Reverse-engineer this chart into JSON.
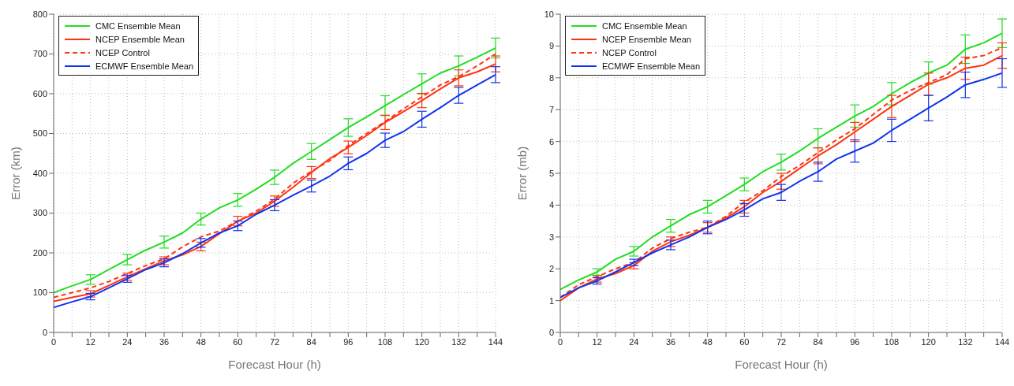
{
  "chart_data": [
    {
      "type": "line",
      "xlabel": "Forecast Hour (h)",
      "ylabel": "Error (km)",
      "x": [
        0,
        6,
        12,
        18,
        24,
        30,
        36,
        42,
        48,
        54,
        60,
        66,
        72,
        78,
        84,
        90,
        96,
        102,
        108,
        114,
        120,
        126,
        132,
        138,
        144
      ],
      "xlim": [
        0,
        144
      ],
      "xticks": [
        0,
        12,
        24,
        36,
        48,
        60,
        72,
        84,
        96,
        108,
        120,
        132,
        144
      ],
      "ylim": [
        0,
        800
      ],
      "yticks": [
        0,
        100,
        200,
        300,
        400,
        500,
        600,
        700,
        800
      ],
      "grid": true,
      "legend": "top left",
      "marker": "none",
      "line_style": "solid",
      "series": [
        {
          "name": "CMC Ensemble Mean",
          "color": "#22dd22",
          "values": [
            100,
            117,
            133,
            158,
            183,
            207,
            227,
            250,
            285,
            313,
            333,
            360,
            390,
            425,
            455,
            485,
            515,
            542,
            570,
            598,
            625,
            652,
            670,
            692,
            715
          ],
          "errors": [
            null,
            null,
            12,
            null,
            13,
            null,
            15,
            null,
            15,
            null,
            16,
            null,
            18,
            null,
            20,
            null,
            22,
            null,
            25,
            null,
            25,
            null,
            25,
            null,
            25
          ]
        },
        {
          "name": "NCEP Ensemble Mean",
          "color": "#ff3311",
          "values": [
            78,
            88,
            97,
            118,
            140,
            160,
            180,
            195,
            216,
            248,
            280,
            300,
            330,
            365,
            402,
            437,
            465,
            495,
            528,
            555,
            583,
            612,
            640,
            655,
            675
          ],
          "errors": [
            null,
            null,
            8,
            null,
            9,
            null,
            10,
            null,
            11,
            null,
            12,
            null,
            13,
            null,
            15,
            null,
            16,
            null,
            18,
            null,
            18,
            null,
            20,
            null,
            20
          ]
        },
        {
          "name": "NCEP Control",
          "color": "#ff3311",
          "line_style": "dashed",
          "values": [
            88,
            100,
            112,
            128,
            148,
            168,
            185,
            215,
            240,
            255,
            280,
            305,
            335,
            375,
            405,
            432,
            470,
            500,
            530,
            562,
            592,
            622,
            643,
            670,
            700
          ]
        },
        {
          "name": "ECMWF Ensemble Mean",
          "color": "#1133ee",
          "values": [
            63,
            77,
            90,
            112,
            135,
            158,
            175,
            198,
            225,
            250,
            268,
            297,
            320,
            345,
            368,
            393,
            425,
            450,
            483,
            505,
            536,
            565,
            596,
            622,
            648
          ],
          "errors": [
            null,
            null,
            8,
            null,
            9,
            null,
            10,
            null,
            11,
            null,
            12,
            null,
            14,
            null,
            15,
            null,
            16,
            null,
            18,
            null,
            20,
            null,
            20,
            null,
            20
          ]
        }
      ]
    },
    {
      "type": "line",
      "xlabel": "Forecast Hour (h)",
      "ylabel": "Error (mb)",
      "x": [
        0,
        6,
        12,
        18,
        24,
        30,
        36,
        42,
        48,
        54,
        60,
        66,
        72,
        78,
        84,
        90,
        96,
        102,
        108,
        114,
        120,
        126,
        132,
        138,
        144
      ],
      "xlim": [
        0,
        144
      ],
      "xticks": [
        0,
        12,
        24,
        36,
        48,
        60,
        72,
        84,
        96,
        108,
        120,
        132,
        144
      ],
      "ylim": [
        0,
        10
      ],
      "yticks": [
        0,
        1,
        2,
        3,
        4,
        5,
        6,
        7,
        8,
        9,
        10
      ],
      "grid": true,
      "legend": "top left",
      "marker": "none",
      "line_style": "solid",
      "series": [
        {
          "name": "CMC Ensemble Mean",
          "color": "#22dd22",
          "values": [
            1.35,
            1.65,
            1.9,
            2.3,
            2.55,
            3.0,
            3.35,
            3.7,
            3.95,
            4.3,
            4.65,
            5.05,
            5.35,
            5.7,
            6.1,
            6.45,
            6.8,
            7.1,
            7.5,
            7.85,
            8.15,
            8.4,
            8.9,
            9.1,
            9.4
          ],
          "errors": [
            null,
            null,
            0.1,
            null,
            0.15,
            null,
            0.2,
            null,
            0.2,
            null,
            0.2,
            null,
            0.25,
            null,
            0.3,
            null,
            0.35,
            null,
            0.35,
            null,
            0.35,
            null,
            0.45,
            null,
            0.45
          ]
        },
        {
          "name": "NCEP Ensemble Mean",
          "color": "#ff3311",
          "values": [
            1.0,
            1.4,
            1.68,
            1.85,
            2.1,
            2.55,
            2.85,
            3.05,
            3.3,
            3.6,
            3.95,
            4.4,
            4.75,
            5.15,
            5.55,
            5.9,
            6.3,
            6.7,
            7.1,
            7.45,
            7.8,
            8.0,
            8.3,
            8.4,
            8.7
          ],
          "errors": [
            null,
            null,
            0.1,
            null,
            0.1,
            null,
            0.15,
            null,
            0.15,
            null,
            0.2,
            null,
            0.25,
            null,
            0.25,
            null,
            0.3,
            null,
            0.35,
            null,
            0.35,
            null,
            0.35,
            null,
            0.4
          ]
        },
        {
          "name": "NCEP Control",
          "color": "#ff3311",
          "line_style": "dashed",
          "values": [
            1.1,
            1.5,
            1.75,
            2.0,
            2.2,
            2.65,
            2.95,
            3.15,
            3.3,
            3.65,
            4.1,
            4.45,
            4.9,
            5.25,
            5.65,
            6.05,
            6.4,
            6.85,
            7.3,
            7.6,
            7.85,
            8.1,
            8.6,
            8.7,
            8.95
          ]
        },
        {
          "name": "ECMWF Ensemble Mean",
          "color": "#1133ee",
          "values": [
            1.1,
            1.4,
            1.62,
            1.9,
            2.2,
            2.5,
            2.75,
            3.0,
            3.3,
            3.55,
            3.85,
            4.2,
            4.4,
            4.75,
            5.05,
            5.45,
            5.7,
            5.95,
            6.35,
            6.7,
            7.05,
            7.4,
            7.78,
            7.95,
            8.15
          ],
          "errors": [
            null,
            null,
            0.1,
            null,
            0.1,
            null,
            0.15,
            null,
            0.2,
            null,
            0.2,
            null,
            0.25,
            null,
            0.3,
            null,
            0.35,
            null,
            0.35,
            null,
            0.4,
            null,
            0.4,
            null,
            0.45
          ]
        }
      ]
    }
  ]
}
